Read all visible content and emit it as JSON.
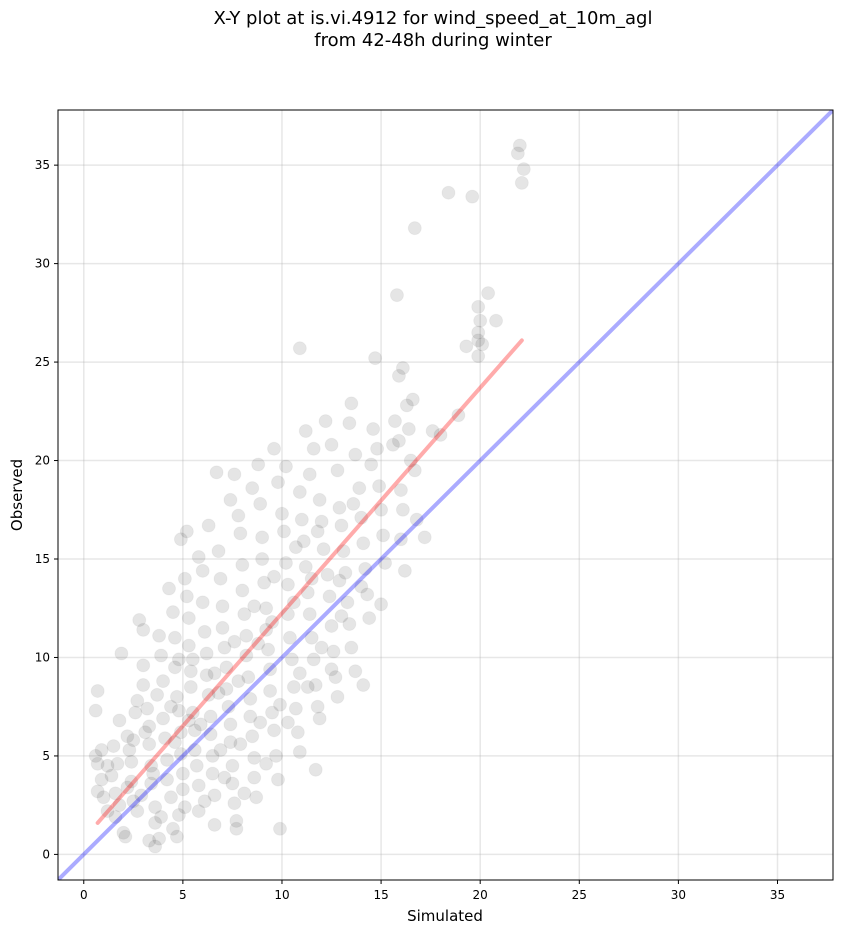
{
  "chart_data": {
    "type": "scatter",
    "title": "X-Y plot at is.vi.4912 for wind_speed_at_10m_agl",
    "subtitle": "from 42-48h during winter",
    "xlabel": "Simulated",
    "ylabel": "Observed",
    "xlim": [
      -1.3,
      37.8
    ],
    "ylim": [
      -1.3,
      37.8
    ],
    "xticks": [
      0,
      5,
      10,
      15,
      20,
      25,
      30,
      35
    ],
    "yticks": [
      0,
      5,
      10,
      15,
      20,
      25,
      30,
      35
    ],
    "grid": true,
    "colors": {
      "points": "#000000",
      "fit_line": "#ff0000",
      "identity_line": "#0000ff"
    },
    "series": [
      {
        "type": "scatter",
        "points": [
          [
            0.6,
            7.3
          ],
          [
            0.7,
            8.3
          ],
          [
            0.6,
            5.0
          ],
          [
            0.7,
            4.6
          ],
          [
            0.9,
            5.3
          ],
          [
            0.7,
            3.2
          ],
          [
            0.9,
            3.8
          ],
          [
            1.0,
            2.9
          ],
          [
            1.2,
            4.5
          ],
          [
            1.5,
            5.5
          ],
          [
            1.4,
            4.0
          ],
          [
            1.7,
            4.6
          ],
          [
            1.6,
            3.1
          ],
          [
            1.8,
            2.5
          ],
          [
            1.6,
            1.9
          ],
          [
            2.0,
            1.1
          ],
          [
            2.1,
            0.9
          ],
          [
            1.9,
            10.2
          ],
          [
            1.8,
            6.8
          ],
          [
            2.2,
            6.0
          ],
          [
            2.3,
            5.3
          ],
          [
            2.4,
            4.7
          ],
          [
            2.4,
            3.7
          ],
          [
            2.5,
            2.7
          ],
          [
            2.7,
            2.2
          ],
          [
            2.6,
            7.2
          ],
          [
            2.7,
            7.8
          ],
          [
            2.8,
            11.9
          ],
          [
            3.0,
            11.4
          ],
          [
            3.0,
            9.6
          ],
          [
            3.0,
            8.6
          ],
          [
            3.2,
            7.4
          ],
          [
            3.3,
            6.5
          ],
          [
            3.3,
            5.6
          ],
          [
            3.4,
            4.5
          ],
          [
            3.4,
            3.6
          ],
          [
            3.6,
            2.4
          ],
          [
            3.6,
            1.6
          ],
          [
            3.8,
            0.8
          ],
          [
            3.6,
            0.4
          ],
          [
            3.3,
            0.7
          ],
          [
            3.8,
            11.1
          ],
          [
            3.9,
            10.1
          ],
          [
            4.0,
            8.8
          ],
          [
            4.0,
            6.9
          ],
          [
            4.1,
            5.9
          ],
          [
            4.2,
            4.8
          ],
          [
            4.2,
            3.8
          ],
          [
            4.4,
            2.9
          ],
          [
            4.5,
            1.3
          ],
          [
            4.7,
            0.9
          ],
          [
            4.3,
            13.5
          ],
          [
            4.5,
            12.3
          ],
          [
            4.6,
            11.0
          ],
          [
            4.6,
            9.5
          ],
          [
            4.7,
            8.0
          ],
          [
            4.8,
            7.3
          ],
          [
            4.9,
            6.2
          ],
          [
            4.9,
            5.1
          ],
          [
            5.0,
            4.1
          ],
          [
            5.0,
            3.3
          ],
          [
            5.1,
            2.4
          ],
          [
            4.9,
            16.0
          ],
          [
            5.1,
            14.0
          ],
          [
            5.2,
            13.1
          ],
          [
            5.3,
            12.0
          ],
          [
            5.3,
            10.6
          ],
          [
            5.4,
            9.3
          ],
          [
            5.4,
            8.5
          ],
          [
            5.5,
            7.2
          ],
          [
            5.6,
            6.3
          ],
          [
            5.6,
            5.3
          ],
          [
            5.7,
            4.5
          ],
          [
            5.8,
            3.5
          ],
          [
            5.8,
            2.2
          ],
          [
            5.2,
            16.4
          ],
          [
            5.8,
            15.1
          ],
          [
            6.0,
            14.4
          ],
          [
            6.0,
            12.8
          ],
          [
            6.1,
            11.3
          ],
          [
            6.2,
            10.2
          ],
          [
            6.2,
            9.1
          ],
          [
            6.3,
            8.1
          ],
          [
            6.4,
            7.0
          ],
          [
            6.4,
            6.1
          ],
          [
            6.5,
            5.0
          ],
          [
            6.5,
            4.1
          ],
          [
            6.6,
            3.0
          ],
          [
            6.6,
            1.5
          ],
          [
            6.3,
            16.7
          ],
          [
            6.7,
            19.4
          ],
          [
            6.8,
            15.4
          ],
          [
            6.9,
            14.0
          ],
          [
            7.0,
            12.6
          ],
          [
            7.0,
            11.5
          ],
          [
            7.1,
            10.5
          ],
          [
            7.2,
            9.5
          ],
          [
            7.2,
            8.4
          ],
          [
            7.3,
            7.5
          ],
          [
            7.4,
            6.6
          ],
          [
            7.4,
            5.7
          ],
          [
            7.5,
            4.5
          ],
          [
            7.5,
            3.6
          ],
          [
            7.6,
            2.6
          ],
          [
            7.7,
            1.7
          ],
          [
            7.7,
            1.3
          ],
          [
            7.4,
            18.0
          ],
          [
            7.6,
            19.3
          ],
          [
            7.8,
            17.2
          ],
          [
            7.9,
            16.3
          ],
          [
            8.0,
            14.7
          ],
          [
            8.0,
            13.4
          ],
          [
            8.1,
            12.2
          ],
          [
            8.2,
            11.1
          ],
          [
            8.2,
            10.1
          ],
          [
            8.3,
            9.0
          ],
          [
            8.4,
            7.9
          ],
          [
            8.4,
            7.0
          ],
          [
            8.5,
            6.0
          ],
          [
            8.6,
            4.9
          ],
          [
            8.6,
            3.9
          ],
          [
            8.7,
            2.9
          ],
          [
            8.5,
            18.6
          ],
          [
            8.8,
            19.8
          ],
          [
            8.9,
            17.8
          ],
          [
            9.0,
            16.1
          ],
          [
            9.0,
            15.0
          ],
          [
            9.1,
            13.8
          ],
          [
            9.2,
            12.5
          ],
          [
            9.2,
            11.4
          ],
          [
            9.3,
            10.4
          ],
          [
            9.4,
            9.4
          ],
          [
            9.4,
            8.3
          ],
          [
            9.5,
            7.2
          ],
          [
            9.6,
            6.3
          ],
          [
            9.7,
            5.0
          ],
          [
            9.8,
            3.8
          ],
          [
            9.9,
            1.3
          ],
          [
            9.6,
            20.6
          ],
          [
            9.8,
            18.9
          ],
          [
            10.0,
            17.3
          ],
          [
            10.1,
            16.4
          ],
          [
            10.2,
            14.8
          ],
          [
            10.3,
            13.7
          ],
          [
            10.3,
            12.2
          ],
          [
            10.4,
            11.0
          ],
          [
            10.5,
            9.9
          ],
          [
            10.6,
            8.5
          ],
          [
            10.7,
            7.4
          ],
          [
            10.8,
            6.2
          ],
          [
            10.9,
            5.2
          ],
          [
            10.2,
            19.7
          ],
          [
            10.9,
            18.4
          ],
          [
            11.0,
            17.0
          ],
          [
            11.1,
            15.9
          ],
          [
            11.2,
            14.6
          ],
          [
            11.3,
            13.3
          ],
          [
            11.4,
            12.2
          ],
          [
            11.5,
            11.0
          ],
          [
            11.6,
            9.9
          ],
          [
            11.7,
            8.6
          ],
          [
            11.8,
            7.5
          ],
          [
            11.9,
            6.9
          ],
          [
            11.7,
            4.3
          ],
          [
            10.9,
            25.7
          ],
          [
            11.2,
            21.5
          ],
          [
            11.4,
            19.3
          ],
          [
            11.6,
            20.6
          ],
          [
            11.9,
            18.0
          ],
          [
            12.0,
            16.9
          ],
          [
            12.1,
            15.5
          ],
          [
            12.3,
            14.2
          ],
          [
            12.4,
            13.1
          ],
          [
            12.5,
            11.6
          ],
          [
            12.6,
            10.3
          ],
          [
            12.7,
            9.0
          ],
          [
            12.8,
            8.0
          ],
          [
            12.2,
            22.0
          ],
          [
            12.5,
            20.8
          ],
          [
            12.8,
            19.5
          ],
          [
            12.9,
            17.6
          ],
          [
            13.0,
            16.7
          ],
          [
            13.1,
            15.4
          ],
          [
            13.2,
            14.3
          ],
          [
            13.3,
            12.8
          ],
          [
            13.4,
            11.7
          ],
          [
            13.5,
            10.5
          ],
          [
            13.7,
            9.3
          ],
          [
            13.4,
            21.9
          ],
          [
            13.5,
            22.9
          ],
          [
            13.7,
            20.3
          ],
          [
            13.9,
            18.6
          ],
          [
            14.0,
            17.1
          ],
          [
            14.1,
            15.8
          ],
          [
            14.2,
            14.5
          ],
          [
            14.3,
            13.2
          ],
          [
            14.4,
            12.0
          ],
          [
            14.1,
            8.6
          ],
          [
            14.5,
            19.8
          ],
          [
            14.6,
            21.6
          ],
          [
            14.7,
            25.2
          ],
          [
            14.8,
            20.6
          ],
          [
            14.9,
            18.7
          ],
          [
            15.0,
            17.5
          ],
          [
            15.1,
            16.2
          ],
          [
            15.2,
            14.8
          ],
          [
            15.0,
            12.7
          ],
          [
            15.6,
            20.8
          ],
          [
            15.7,
            22.0
          ],
          [
            15.8,
            28.4
          ],
          [
            15.9,
            24.3
          ],
          [
            15.9,
            21.0
          ],
          [
            16.0,
            18.5
          ],
          [
            16.1,
            17.5
          ],
          [
            16.0,
            16.0
          ],
          [
            16.2,
            14.4
          ],
          [
            16.1,
            24.7
          ],
          [
            16.3,
            22.8
          ],
          [
            16.4,
            21.6
          ],
          [
            16.5,
            20.0
          ],
          [
            16.6,
            23.1
          ],
          [
            16.7,
            31.8
          ],
          [
            16.7,
            19.5
          ],
          [
            16.8,
            17.0
          ],
          [
            17.2,
            16.1
          ],
          [
            17.6,
            21.5
          ],
          [
            18.0,
            21.3
          ],
          [
            18.4,
            33.6
          ],
          [
            18.9,
            22.3
          ],
          [
            19.3,
            25.8
          ],
          [
            19.6,
            33.4
          ],
          [
            19.9,
            26.1
          ],
          [
            19.9,
            27.8
          ],
          [
            20.0,
            27.1
          ],
          [
            19.9,
            26.5
          ],
          [
            20.1,
            25.9
          ],
          [
            19.9,
            25.3
          ],
          [
            20.4,
            28.5
          ],
          [
            20.8,
            27.1
          ],
          [
            21.9,
            35.6
          ],
          [
            22.0,
            36.0
          ],
          [
            22.1,
            34.1
          ],
          [
            22.2,
            34.8
          ],
          [
            2.5,
            5.8
          ],
          [
            3.1,
            6.2
          ],
          [
            4.8,
            9.9
          ],
          [
            5.5,
            9.9
          ],
          [
            6.8,
            8.2
          ],
          [
            7.8,
            8.8
          ],
          [
            8.8,
            10.7
          ],
          [
            9.5,
            11.8
          ],
          [
            10.6,
            12.8
          ],
          [
            11.5,
            14.0
          ],
          [
            12.9,
            13.9
          ],
          [
            3.7,
            8.1
          ],
          [
            4.4,
            7.5
          ],
          [
            5.9,
            6.6
          ],
          [
            6.9,
            5.3
          ],
          [
            7.9,
            5.6
          ],
          [
            8.9,
            6.7
          ],
          [
            9.9,
            7.6
          ],
          [
            10.9,
            9.2
          ],
          [
            12.0,
            10.5
          ],
          [
            13.0,
            12.1
          ],
          [
            14.0,
            13.6
          ],
          [
            1.2,
            2.2
          ],
          [
            2.9,
            3.0
          ],
          [
            3.9,
            1.9
          ],
          [
            4.8,
            2.0
          ],
          [
            6.1,
            2.7
          ],
          [
            7.1,
            3.9
          ],
          [
            8.1,
            3.1
          ],
          [
            9.2,
            4.6
          ],
          [
            10.3,
            6.7
          ],
          [
            11.3,
            8.5
          ],
          [
            12.5,
            9.4
          ],
          [
            2.2,
            3.4
          ],
          [
            3.5,
            4.1
          ],
          [
            4.6,
            5.7
          ],
          [
            5.3,
            6.8
          ],
          [
            6.6,
            9.2
          ],
          [
            7.6,
            10.8
          ],
          [
            8.6,
            12.6
          ],
          [
            9.6,
            14.1
          ],
          [
            10.7,
            15.6
          ],
          [
            11.8,
            16.4
          ],
          [
            13.6,
            17.8
          ]
        ]
      },
      {
        "type": "line",
        "x": [
          0.7,
          22.1
        ],
        "y": [
          1.6,
          26.1
        ]
      },
      {
        "type": "line",
        "x": [
          -1.3,
          37.8
        ],
        "y": [
          -1.3,
          37.8
        ]
      }
    ]
  }
}
